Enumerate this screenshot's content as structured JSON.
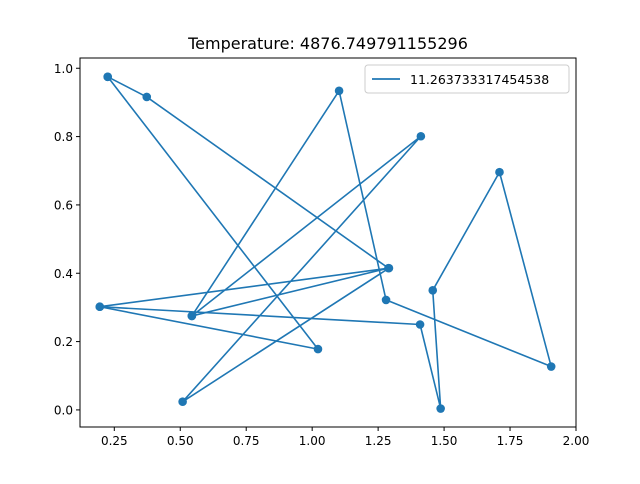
{
  "chart_data": {
    "type": "line",
    "title": "Temperature: 4876.749791155296",
    "xlabel": "",
    "ylabel": "",
    "xlim": [
      0.12,
      2.0
    ],
    "ylim": [
      -0.05,
      1.03
    ],
    "xticks": [
      0.25,
      0.5,
      0.75,
      1.0,
      1.25,
      1.5,
      1.75,
      2.0
    ],
    "xtick_labels": [
      "0.25",
      "0.50",
      "0.75",
      "1.00",
      "1.25",
      "1.50",
      "1.75",
      "2.00"
    ],
    "yticks": [
      0.0,
      0.2,
      0.4,
      0.6,
      0.8,
      1.0
    ],
    "ytick_labels": [
      "0.0",
      "0.2",
      "0.4",
      "0.6",
      "0.8",
      "1.0"
    ],
    "grid": false,
    "legend_position": "top-right",
    "series": [
      {
        "name": "11.263733317454538",
        "color": "#1f77b4",
        "marker": "circle",
        "x": [
          0.225,
          0.373,
          1.289,
          0.544,
          1.412,
          0.509,
          1.291,
          0.195,
          1.022,
          0.225
        ],
        "y": [
          0.975,
          0.916,
          0.415,
          0.275,
          0.801,
          0.024,
          0.415,
          0.302,
          0.178,
          0.975
        ]
      },
      {
        "name": "",
        "color": "#1f77b4",
        "marker": "circle",
        "x": [
          0.195,
          1.409,
          1.487,
          1.457,
          1.71,
          1.906,
          1.28,
          1.102,
          0.544
        ],
        "y": [
          0.302,
          0.25,
          0.004,
          0.35,
          0.696,
          0.127,
          0.322,
          0.934,
          0.275
        ]
      }
    ]
  }
}
